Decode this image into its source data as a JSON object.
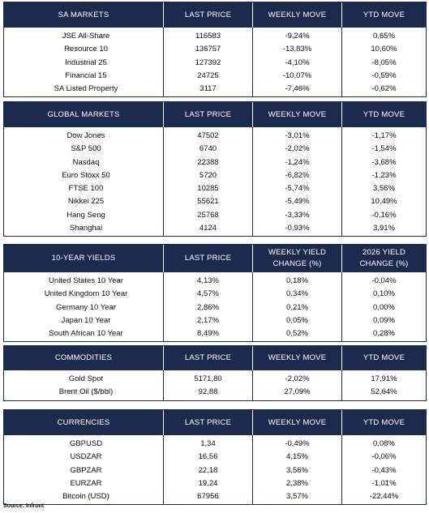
{
  "tables": [
    {
      "headers": [
        "SA MARKETS",
        "LAST PRICE",
        "WEEKLY MOVE",
        "YTD MOVE"
      ],
      "rows": [
        [
          "JSE All-Share",
          "116583",
          "-9,24%",
          "0,65%"
        ],
        [
          "Resource 10",
          "136757",
          "-13,83%",
          "10,60%"
        ],
        [
          "Industrial 25",
          "127392",
          "-4,10%",
          "-8,05%"
        ],
        [
          "Financial 15",
          "24725",
          "-10,07%",
          "-0,59%"
        ],
        [
          "SA Listed Property",
          "3117",
          "-7,46%",
          "-0,62%"
        ]
      ]
    },
    {
      "headers": [
        "GLOBAL MARKETS",
        "LAST PRICE",
        "WEEKLY MOVE",
        "YTD MOVE"
      ],
      "rows": [
        [
          "Dow Jones",
          "47502",
          "-3,01%",
          "-1,17%"
        ],
        [
          "S&P 500",
          "6740",
          "-2,02%",
          "-1,54%"
        ],
        [
          "Nasdaq",
          "22388",
          "-1,24%",
          "-3,68%"
        ],
        [
          "Euro Stoxx 50",
          "5720",
          "-6,82%",
          "-1,23%"
        ],
        [
          "FTSE 100",
          "10285",
          "-5,74%",
          "3,56%"
        ],
        [
          "Nikkei 225",
          "55621",
          "-5,49%",
          "10,49%"
        ],
        [
          "Hang Seng",
          "25768",
          "-3,33%",
          "-0,16%"
        ],
        [
          "Shanghai",
          "4124",
          "-0,93%",
          "3,91%"
        ]
      ]
    },
    {
      "headers": [
        "10-YEAR YIELDS",
        "LAST PRICE",
        "WEEKLY YIELD\nCHANGE (%)",
        "2026 YIELD\nCHANGE (%)"
      ],
      "rows": [
        [
          "United States 10 Year",
          "4,13%",
          "0,18%",
          "-0,04%"
        ],
        [
          "United Kingdom 10 Year",
          "4,57%",
          "0,34%",
          "0,10%"
        ],
        [
          "Germany 10 Year",
          "2,86%",
          "0,21%",
          "0,00%"
        ],
        [
          "Japan 10 Year",
          "2,17%",
          "0,05%",
          "0,09%"
        ],
        [
          "South African 10 Year",
          "8,49%",
          "0,52%",
          "0,28%"
        ]
      ]
    },
    {
      "headers": [
        "COMMODITIES",
        "LAST PRICE",
        "WEEKLY MOVE",
        "YTD MOVE"
      ],
      "rows": [
        [
          "Gold Spot",
          "5171,80",
          "-2,02%",
          "17,91%"
        ],
        [
          "Brent Oil ($/bbl)",
          "92,88",
          "27,09%",
          "52,64%"
        ]
      ]
    },
    {
      "headers": [
        "CURRENCIES",
        "LAST PRICE",
        "WEEKLY MOVE",
        "YTD MOVE"
      ],
      "rows": [
        [
          "GBPUSD",
          "1,34",
          "-0,49%",
          "0,08%"
        ],
        [
          "USDZAR",
          "16,56",
          "4,15%",
          "-0,06%"
        ],
        [
          "GBPZAR",
          "22,18",
          "3,56%",
          "-0,43%"
        ],
        [
          "EURZAR",
          "19,24",
          "2,38%",
          "-1,01%"
        ],
        [
          "Bitcoin (USD)",
          "67956",
          "3,57%",
          "-22,44%"
        ]
      ]
    }
  ],
  "source": "Source: Infront",
  "colors": {
    "header_bg": "#1c2b4d",
    "header_text": "#ffffff",
    "border": "#1a2c4e"
  }
}
